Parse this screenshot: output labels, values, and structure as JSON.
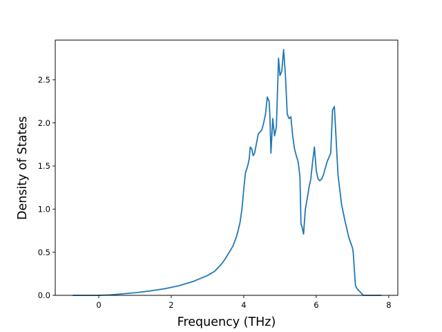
{
  "chart_data": {
    "type": "line",
    "title": "",
    "xlabel": "Frequency (THz)",
    "ylabel": "Density of States",
    "xlim": [
      -1.2,
      8.25
    ],
    "ylim": [
      0,
      2.96
    ],
    "x_ticks": [
      0,
      2,
      4,
      6,
      8
    ],
    "y_ticks": [
      0.0,
      0.5,
      1.0,
      1.5,
      2.0,
      2.5
    ],
    "x_tick_labels": [
      "0",
      "2",
      "4",
      "6",
      "8"
    ],
    "y_tick_labels": [
      "0.0",
      "0.5",
      "1.0",
      "1.5",
      "2.0",
      "2.5"
    ],
    "grid": false,
    "legend": "none",
    "series": [
      {
        "color": "#1f77b4",
        "x": [
          -0.72,
          -0.2,
          0.0,
          0.3,
          0.6,
          1.0,
          1.4,
          1.8,
          2.2,
          2.6,
          3.0,
          3.2,
          3.4,
          3.5,
          3.6,
          3.7,
          3.8,
          3.85,
          3.9,
          3.95,
          4.0,
          4.05,
          4.08,
          4.12,
          4.15,
          4.18,
          4.22,
          4.26,
          4.3,
          4.4,
          4.5,
          4.55,
          4.6,
          4.65,
          4.7,
          4.72,
          4.75,
          4.8,
          4.85,
          4.9,
          4.93,
          4.96,
          5.0,
          5.05,
          5.1,
          5.15,
          5.2,
          5.25,
          5.3,
          5.35,
          5.4,
          5.45,
          5.5,
          5.55,
          5.58,
          5.6,
          5.65,
          5.7,
          5.75,
          5.8,
          5.85,
          5.9,
          5.95,
          6.0,
          6.05,
          6.1,
          6.15,
          6.2,
          6.3,
          6.4,
          6.45,
          6.5,
          6.55,
          6.6,
          6.7,
          6.8,
          6.9,
          7.0,
          7.02,
          7.08,
          7.12,
          7.3,
          7.55,
          7.8
        ],
        "y": [
          0.0,
          0.0,
          0.0,
          0.005,
          0.015,
          0.03,
          0.05,
          0.075,
          0.11,
          0.16,
          0.23,
          0.28,
          0.37,
          0.43,
          0.5,
          0.57,
          0.68,
          0.76,
          0.85,
          1.0,
          1.23,
          1.43,
          1.46,
          1.52,
          1.58,
          1.72,
          1.7,
          1.62,
          1.65,
          1.87,
          1.92,
          2.0,
          2.1,
          2.3,
          2.25,
          2.1,
          1.65,
          2.05,
          1.85,
          1.95,
          2.35,
          2.75,
          2.55,
          2.6,
          2.85,
          2.55,
          2.1,
          2.05,
          2.07,
          1.85,
          1.7,
          1.62,
          1.55,
          1.38,
          0.82,
          0.81,
          0.71,
          1.0,
          1.12,
          1.25,
          1.35,
          1.55,
          1.72,
          1.45,
          1.35,
          1.33,
          1.35,
          1.4,
          1.55,
          1.65,
          2.15,
          2.19,
          1.8,
          1.4,
          1.05,
          0.85,
          0.67,
          0.55,
          0.5,
          0.12,
          0.08,
          0.0,
          0.0,
          0.0
        ]
      }
    ]
  }
}
